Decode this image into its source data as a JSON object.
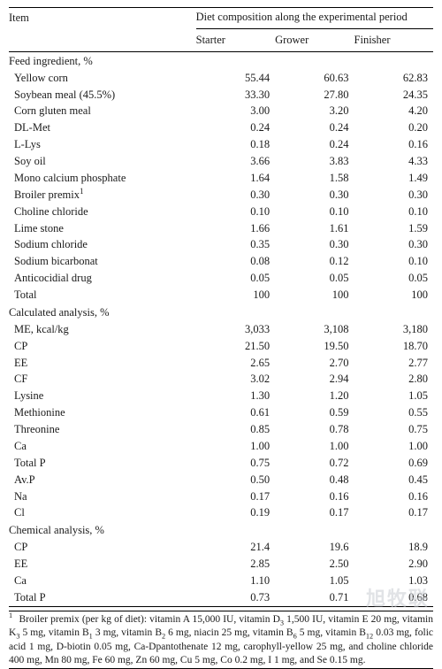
{
  "table": {
    "head": {
      "item": "Item",
      "group": "Diet composition along the experimental period",
      "cols": {
        "starter": "Starter",
        "grower": "Grower",
        "finisher": "Finisher"
      }
    },
    "sections": [
      {
        "title": "Feed ingredient, %",
        "rows": [
          {
            "label": "Yellow corn",
            "v": [
              "55.44",
              "60.63",
              "62.83"
            ]
          },
          {
            "label": "Soybean meal (45.5%)",
            "v": [
              "33.30",
              "27.80",
              "24.35"
            ]
          },
          {
            "label": "Corn gluten meal",
            "v": [
              "3.00",
              "3.20",
              "4.20"
            ]
          },
          {
            "label": "DL-Met",
            "v": [
              "0.24",
              "0.24",
              "0.20"
            ]
          },
          {
            "label": "L-Lys",
            "v": [
              "0.18",
              "0.24",
              "0.16"
            ]
          },
          {
            "label": "Soy oil",
            "v": [
              "3.66",
              "3.83",
              "4.33"
            ]
          },
          {
            "label": "Mono calcium phosphate",
            "v": [
              "1.64",
              "1.58",
              "1.49"
            ]
          },
          {
            "label": "Broiler premix",
            "sup": "1",
            "v": [
              "0.30",
              "0.30",
              "0.30"
            ]
          },
          {
            "label": "Choline chloride",
            "v": [
              "0.10",
              "0.10",
              "0.10"
            ]
          },
          {
            "label": "Lime stone",
            "v": [
              "1.66",
              "1.61",
              "1.59"
            ]
          },
          {
            "label": "Sodium chloride",
            "v": [
              "0.35",
              "0.30",
              "0.30"
            ]
          },
          {
            "label": "Sodium bicarbonat",
            "v": [
              "0.08",
              "0.12",
              "0.10"
            ]
          },
          {
            "label": "Anticocidial drug",
            "v": [
              "0.05",
              "0.05",
              "0.05"
            ]
          },
          {
            "label": "Total",
            "v": [
              "100",
              "100",
              "100"
            ]
          }
        ]
      },
      {
        "title": "Calculated analysis, %",
        "rows": [
          {
            "label": "ME, kcal/kg",
            "v": [
              "3,033",
              "3,108",
              "3,180"
            ]
          },
          {
            "label": "CP",
            "v": [
              "21.50",
              "19.50",
              "18.70"
            ]
          },
          {
            "label": "EE",
            "v": [
              "2.65",
              "2.70",
              "2.77"
            ]
          },
          {
            "label": "CF",
            "v": [
              "3.02",
              "2.94",
              "2.80"
            ]
          },
          {
            "label": "Lysine",
            "v": [
              "1.30",
              "1.20",
              "1.05"
            ]
          },
          {
            "label": "Methionine",
            "v": [
              "0.61",
              "0.59",
              "0.55"
            ]
          },
          {
            "label": "Threonine",
            "v": [
              "0.85",
              "0.78",
              "0.75"
            ]
          },
          {
            "label": "Ca",
            "v": [
              "1.00",
              "1.00",
              "1.00"
            ]
          },
          {
            "label": "Total P",
            "v": [
              "0.75",
              "0.72",
              "0.69"
            ]
          },
          {
            "label": "Av.P",
            "v": [
              "0.50",
              "0.48",
              "0.45"
            ]
          },
          {
            "label": "Na",
            "v": [
              "0.17",
              "0.16",
              "0.16"
            ]
          },
          {
            "label": "Cl",
            "v": [
              "0.19",
              "0.17",
              "0.17"
            ]
          }
        ]
      },
      {
        "title": "Chemical analysis, %",
        "rows": [
          {
            "label": "CP",
            "v": [
              "21.4",
              "19.6",
              "18.9"
            ]
          },
          {
            "label": "EE",
            "v": [
              "2.85",
              "2.50",
              "2.90"
            ]
          },
          {
            "label": "Ca",
            "v": [
              "1.10",
              "1.05",
              "1.03"
            ]
          },
          {
            "label": "Total P",
            "v": [
              "0.73",
              "0.71",
              "0.68"
            ]
          }
        ]
      }
    ]
  },
  "footnote": {
    "marker": "1",
    "text_pre": "Broiler premix (per kg of diet): vitamin A 15,000 IU, vitamin D",
    "d3_sub": "3",
    "text_1": " 1,500 IU, vitamin E 20 mg, vitamin K",
    "k3_sub": "3",
    "text_2": " 5 mg, vitamin B",
    "b1_sub": "1",
    "text_3": " 3 mg, vitamin B",
    "b2_sub": "2",
    "text_4": " 6 mg, niacin 25 mg, vitamin B",
    "b6_sub": "6",
    "text_5": " 5 mg, vitamin B",
    "b12_sub": "12",
    "text_6": " 0.03 mg, folic acid 1 mg, D-biotin 0.05 mg, Ca-Dpantothenate 12 mg, carophyll-yellow 25 mg, and choline chloride 400 mg, Mn 80 mg, Fe 60 mg, Zn 60 mg, Cu 5 mg, Co 0.2 mg, I 1 mg, and Se 0.15 mg."
  },
  "watermark": "旭牧联"
}
